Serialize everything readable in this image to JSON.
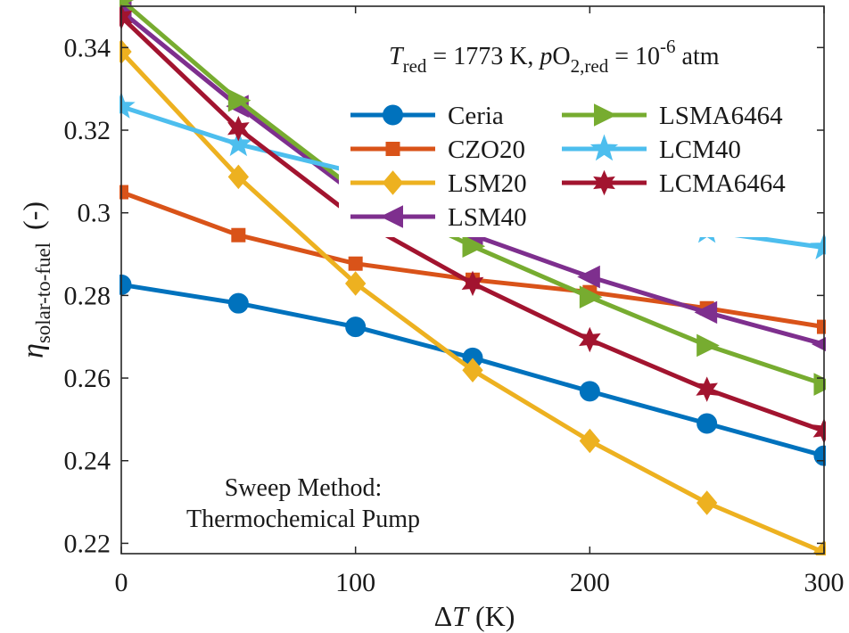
{
  "chart_data": {
    "type": "line",
    "x": [
      0,
      50,
      100,
      150,
      200,
      250,
      300
    ],
    "xlim": [
      0,
      300
    ],
    "ylim": [
      0.2175,
      0.35
    ],
    "xticks": [
      "0",
      "100",
      "200",
      "300"
    ],
    "yticks": [
      "0.22",
      "0.24",
      "0.26",
      "0.28",
      "0.3",
      "0.32",
      "0.34"
    ],
    "xlabel": {
      "prefix": "Δ",
      "var": "T",
      "unit": " (K)"
    },
    "ylabel": {
      "symbol": "η",
      "sub": "solar-to-fuel",
      "unit": "(-)"
    },
    "grid": false,
    "legend_position": "top-right",
    "series": [
      {
        "name": "Ceria",
        "marker": "circle",
        "color": "#0072BD",
        "values": [
          0.2826,
          0.2781,
          0.2724,
          0.2649,
          0.2568,
          0.249,
          0.2412
        ]
      },
      {
        "name": "CZO20",
        "marker": "square",
        "color": "#D95319",
        "values": [
          0.305,
          0.2946,
          0.2877,
          0.2838,
          0.2808,
          0.2769,
          0.2724
        ]
      },
      {
        "name": "LSM20",
        "marker": "diamond",
        "color": "#EDB120",
        "values": [
          0.339,
          0.3087,
          0.2829,
          0.2619,
          0.2448,
          0.2298,
          0.2178
        ]
      },
      {
        "name": "LSM40",
        "marker": "triangle-left",
        "color": "#7E2F8E",
        "values": [
          0.3488,
          0.3258,
          0.3045,
          0.2946,
          0.2845,
          0.2759,
          0.2682
        ]
      },
      {
        "name": "LSMA6464",
        "marker": "triangle-right",
        "color": "#77AC30",
        "values": [
          0.3515,
          0.3272,
          0.3055,
          0.2919,
          0.2796,
          0.2679,
          0.2585
        ]
      },
      {
        "name": "LCM40",
        "marker": "pentagram",
        "color": "#4DBEEE",
        "values": [
          0.3257,
          0.3166,
          0.3098,
          0.3039,
          0.2986,
          0.2956,
          0.2916
        ]
      },
      {
        "name": "LCMA6464",
        "marker": "hexagram",
        "color": "#A2142F",
        "values": [
          0.3474,
          0.3204,
          0.2987,
          0.2829,
          0.2693,
          0.2573,
          0.2472
        ]
      }
    ],
    "annotations": {
      "condition": {
        "t_var": "T",
        "t_sub": "red",
        "t_val": " = 1773 K,  ",
        "p_var": "p",
        "p_species": "O",
        "p_sub": "2,red",
        "p_mid": " = 10",
        "p_exp": "-6",
        "p_unit": " atm"
      },
      "method_line1": "Sweep Method:",
      "method_line2": "Thermochemical Pump"
    }
  }
}
